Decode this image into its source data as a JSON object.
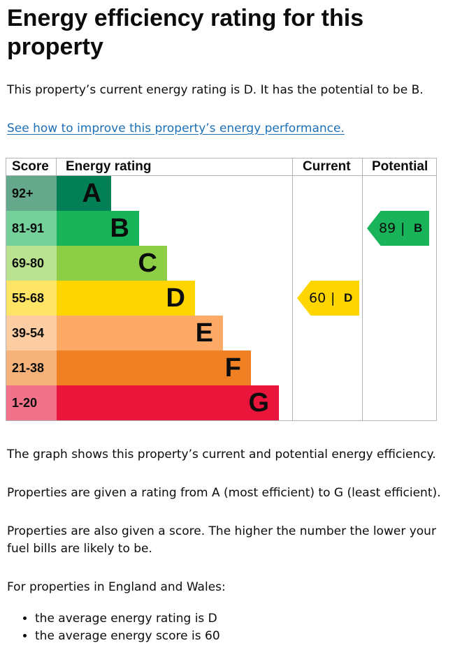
{
  "title": "Energy efficiency rating for this property",
  "intro": "This property’s current energy rating is D. It has the potential to be B.",
  "improve_link": "See how to improve this property’s energy performance.",
  "table": {
    "headers": {
      "score": "Score",
      "rating": "Energy rating",
      "current": "Current",
      "potential": "Potential"
    },
    "bands": [
      {
        "score": "92+",
        "letter": "A",
        "color": "#008054",
        "score_bg": "#66a88c"
      },
      {
        "score": "81-91",
        "letter": "B",
        "color": "#19b459",
        "score_bg": "#75d09b"
      },
      {
        "score": "69-80",
        "letter": "C",
        "color": "#8dce46",
        "score_bg": "#bbe290"
      },
      {
        "score": "55-68",
        "letter": "D",
        "color": "#ffd500",
        "score_bg": "#ffe566"
      },
      {
        "score": "39-54",
        "letter": "E",
        "color": "#fcaa65",
        "score_bg": "#fdcca3"
      },
      {
        "score": "21-38",
        "letter": "F",
        "color": "#ef8023",
        "score_bg": "#f5b37b"
      },
      {
        "score": "1-20",
        "letter": "G",
        "color": "#e9153b",
        "score_bg": "#f27389"
      }
    ],
    "current": {
      "score": "60",
      "separator": "|",
      "letter": "D",
      "color": "#ffd500"
    },
    "potential": {
      "score": "89",
      "separator": "|",
      "letter": "B",
      "color": "#19b459"
    }
  },
  "paragraphs": [
    "The graph shows this property’s current and potential energy efficiency.",
    "Properties are given a rating from A (most efficient) to G (least efficient).",
    "Properties are also given a score. The higher the number the lower your fuel bills are likely to be.",
    "For properties in England and Wales:"
  ],
  "bullets": [
    "the average energy rating is D",
    "the average energy score is 60"
  ]
}
